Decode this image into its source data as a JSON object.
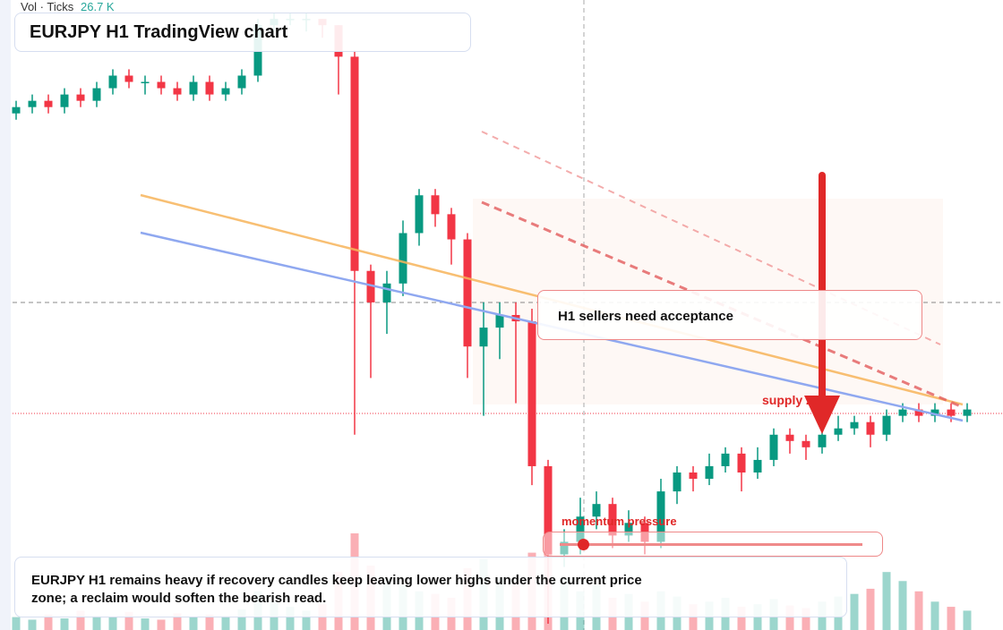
{
  "header": {
    "vol_label": "Vol · Ticks",
    "vol_value": "26.7 K",
    "title": "EURJPY H1 TradingView chart"
  },
  "callout": "H1 sellers need acceptance",
  "zone_label": "supply zone",
  "momentum_label": "momentum pressure",
  "caption": "EURJPY H1 remains heavy if recovery candles keep leaving lower highs under the current price zone; a reclaim would soften the bearish read.",
  "chart_data": {
    "type": "candlestick",
    "up_color": "#089981",
    "down_color": "#f23645",
    "ylim": [
      0,
      100
    ],
    "volume_lim": [
      0,
      100
    ],
    "ohlc": [
      [
        82,
        84,
        81,
        83
      ],
      [
        83,
        85,
        82,
        84
      ],
      [
        84,
        85,
        82,
        83
      ],
      [
        83,
        86,
        82,
        85
      ],
      [
        85,
        86,
        83,
        84
      ],
      [
        84,
        87,
        83,
        86
      ],
      [
        86,
        89,
        85,
        88
      ],
      [
        88,
        89,
        86,
        87
      ],
      [
        87,
        88,
        85,
        87
      ],
      [
        87,
        88,
        85,
        86
      ],
      [
        86,
        87,
        84,
        85
      ],
      [
        85,
        88,
        84,
        87
      ],
      [
        87,
        88,
        84,
        85
      ],
      [
        85,
        87,
        84,
        86
      ],
      [
        86,
        89,
        85,
        88
      ],
      [
        88,
        97,
        87,
        96
      ],
      [
        96,
        98,
        95,
        97
      ],
      [
        97,
        98,
        96,
        97
      ],
      [
        97,
        98,
        95,
        97
      ],
      [
        97,
        97,
        94,
        96
      ],
      [
        96,
        96,
        85,
        91
      ],
      [
        91,
        92,
        31,
        57
      ],
      [
        57,
        58,
        40,
        52
      ],
      [
        52,
        57,
        47,
        55
      ],
      [
        55,
        65,
        53,
        63
      ],
      [
        63,
        70,
        61,
        69
      ],
      [
        69,
        70,
        64,
        66
      ],
      [
        66,
        67,
        58,
        62
      ],
      [
        62,
        63,
        40,
        45
      ],
      [
        45,
        52,
        34,
        48
      ],
      [
        48,
        52,
        43,
        50
      ],
      [
        50,
        52,
        36,
        49
      ],
      [
        49,
        51,
        23,
        26
      ],
      [
        26,
        27,
        1,
        12
      ],
      [
        12,
        16,
        10,
        14
      ],
      [
        14,
        21,
        12,
        18
      ],
      [
        18,
        22,
        16,
        20
      ],
      [
        20,
        21,
        13,
        15
      ],
      [
        15,
        19,
        14,
        17
      ],
      [
        17,
        18,
        12,
        14
      ],
      [
        14,
        24,
        13,
        22
      ],
      [
        22,
        26,
        20,
        25
      ],
      [
        25,
        26,
        22,
        24
      ],
      [
        24,
        28,
        23,
        26
      ],
      [
        26,
        29,
        25,
        28
      ],
      [
        28,
        29,
        22,
        25
      ],
      [
        25,
        29,
        24,
        27
      ],
      [
        27,
        32,
        26,
        31
      ],
      [
        31,
        32,
        28,
        30
      ],
      [
        30,
        31,
        27,
        29
      ],
      [
        29,
        32,
        28,
        31
      ],
      [
        31,
        34,
        30,
        32
      ],
      [
        32,
        34,
        31,
        33
      ],
      [
        33,
        34,
        29,
        31
      ],
      [
        31,
        35,
        30,
        34
      ],
      [
        34,
        36,
        33,
        35
      ],
      [
        35,
        36,
        33,
        34
      ],
      [
        34,
        36,
        33,
        35
      ],
      [
        35,
        36,
        33,
        34
      ],
      [
        34,
        36,
        33,
        35
      ]
    ],
    "volume": [
      10,
      8,
      12,
      9,
      15,
      11,
      10,
      14,
      9,
      8,
      13,
      10,
      12,
      11,
      16,
      30,
      22,
      18,
      15,
      20,
      45,
      75,
      50,
      40,
      35,
      30,
      28,
      25,
      48,
      55,
      40,
      38,
      60,
      80,
      40,
      30,
      35,
      25,
      28,
      22,
      30,
      26,
      20,
      22,
      25,
      18,
      20,
      24,
      19,
      17,
      22,
      26,
      28,
      32,
      45,
      38,
      30,
      22,
      18,
      15
    ]
  }
}
